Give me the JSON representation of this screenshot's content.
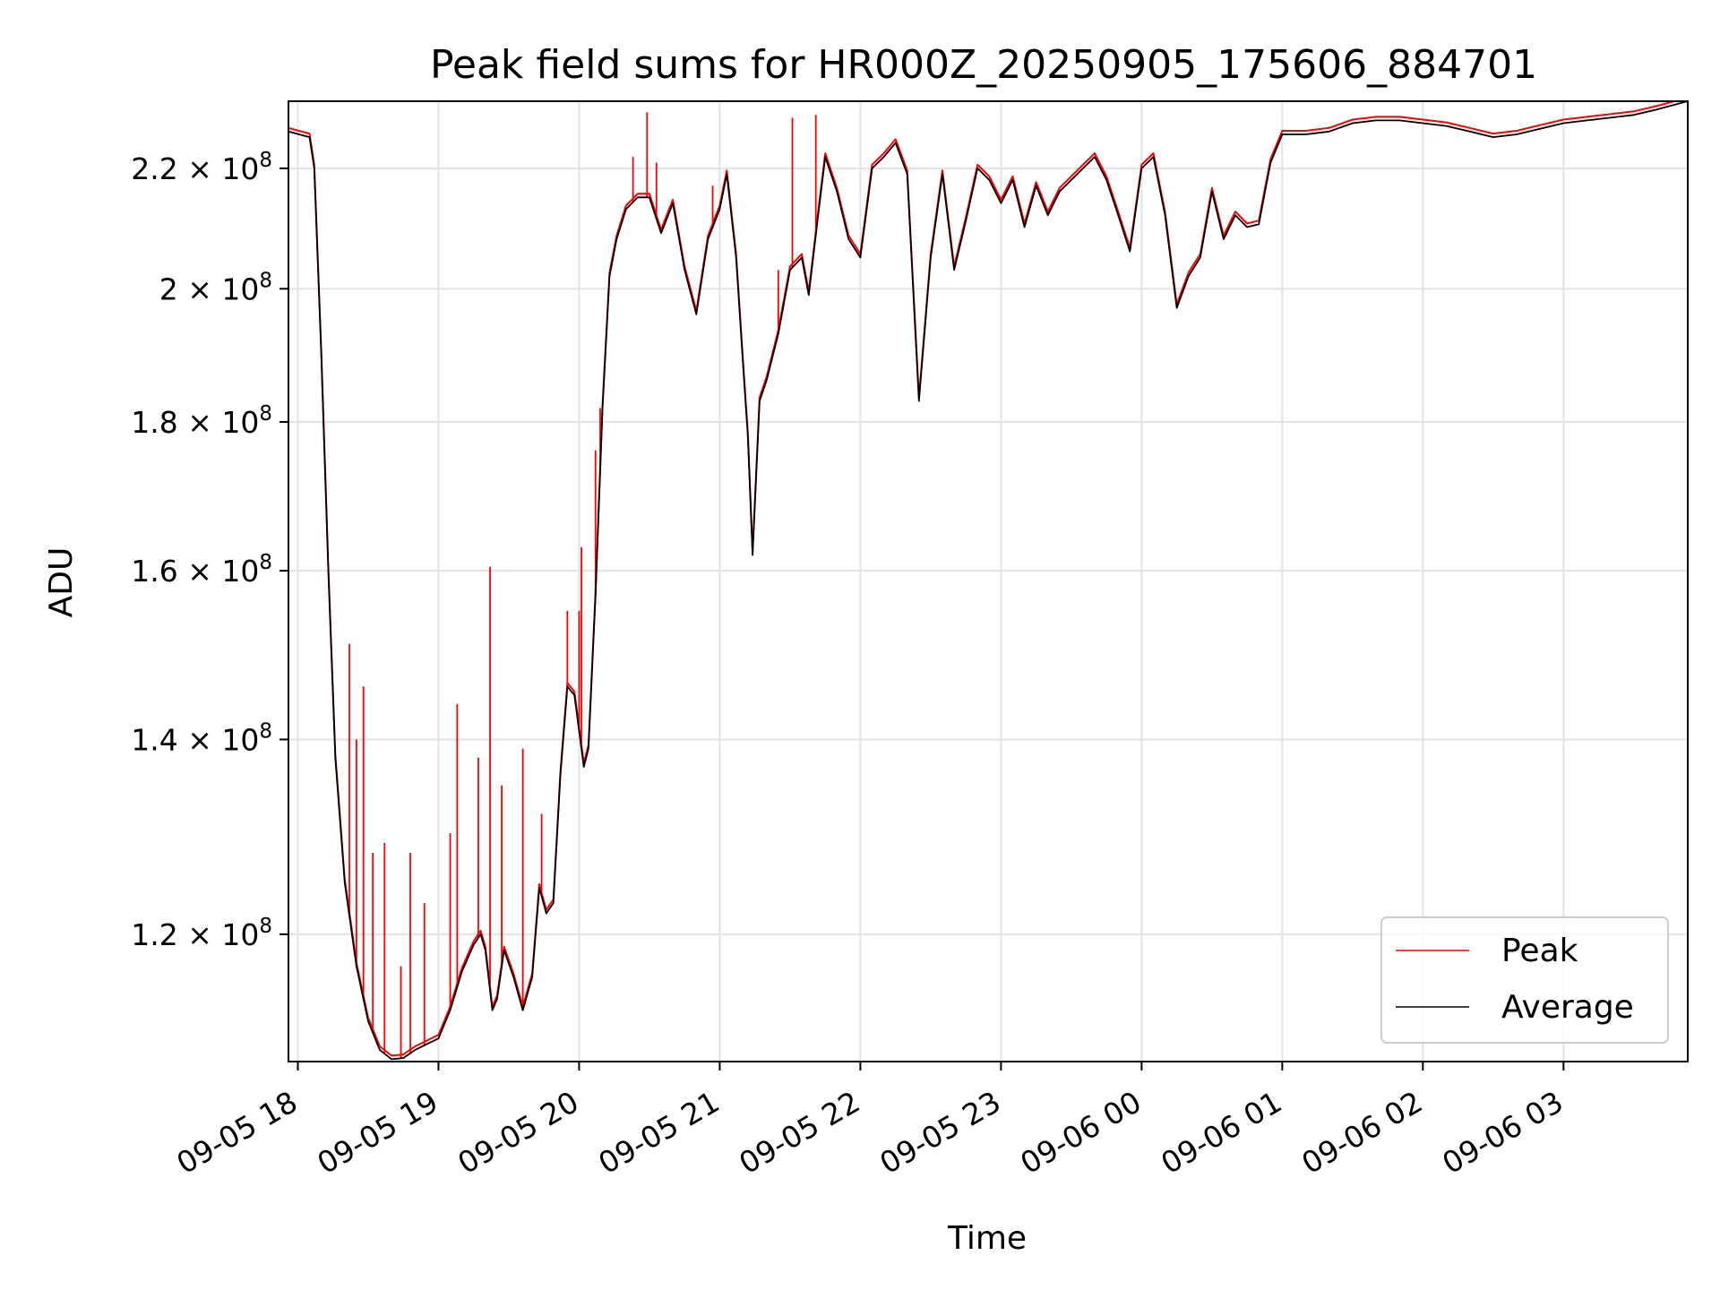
{
  "chart_data": {
    "type": "line",
    "title": "Peak field sums for HR000Z_20250905_175606_884701",
    "xlabel": "Time",
    "ylabel": "ADU",
    "y_scale": "log",
    "ylim": [
      108500000,
      232000000
    ],
    "xlim": [
      "2025-09-05 17:56",
      "2025-09-06 03:53"
    ],
    "grid": true,
    "legend_position": "lower right",
    "x_ticks": [
      {
        "t": "2025-09-05 18:00",
        "label": "09-05 18"
      },
      {
        "t": "2025-09-05 19:00",
        "label": "09-05 19"
      },
      {
        "t": "2025-09-05 20:00",
        "label": "09-05 20"
      },
      {
        "t": "2025-09-05 21:00",
        "label": "09-05 21"
      },
      {
        "t": "2025-09-05 22:00",
        "label": "09-05 22"
      },
      {
        "t": "2025-09-05 23:00",
        "label": "09-05 23"
      },
      {
        "t": "2025-09-06 00:00",
        "label": "09-06 00"
      },
      {
        "t": "2025-09-06 01:00",
        "label": "09-06 01"
      },
      {
        "t": "2025-09-06 02:00",
        "label": "09-06 02"
      },
      {
        "t": "2025-09-06 03:00",
        "label": "09-06 03"
      }
    ],
    "y_ticks": [
      {
        "value": 120000000,
        "mant": "1.2",
        "exp": "8"
      },
      {
        "value": 140000000,
        "mant": "1.4",
        "exp": "8"
      },
      {
        "value": 160000000,
        "mant": "1.6",
        "exp": "8"
      },
      {
        "value": 180000000,
        "mant": "1.8",
        "exp": "8"
      },
      {
        "value": 200000000,
        "mant": "2",
        "exp": "8"
      },
      {
        "value": 220000000,
        "mant": "2.2",
        "exp": "8"
      }
    ],
    "series": [
      {
        "name": "Average",
        "color": "#000000",
        "points": [
          [
            "2025-09-05 17:56",
            226500000
          ],
          [
            "2025-09-05 18:05",
            225500000
          ],
          [
            "2025-09-05 18:07",
            220000000
          ],
          [
            "2025-09-05 18:10",
            190000000
          ],
          [
            "2025-09-05 18:13",
            160000000
          ],
          [
            "2025-09-05 18:16",
            138000000
          ],
          [
            "2025-09-05 18:20",
            125000000
          ],
          [
            "2025-09-05 18:25",
            117000000
          ],
          [
            "2025-09-05 18:30",
            112000000
          ],
          [
            "2025-09-05 18:35",
            109500000
          ],
          [
            "2025-09-05 18:40",
            108700000
          ],
          [
            "2025-09-05 18:45",
            108800000
          ],
          [
            "2025-09-05 18:50",
            109500000
          ],
          [
            "2025-09-05 18:55",
            110000000
          ],
          [
            "2025-09-05 19:00",
            110500000
          ],
          [
            "2025-09-05 19:05",
            113000000
          ],
          [
            "2025-09-05 19:10",
            116500000
          ],
          [
            "2025-09-05 19:15",
            119000000
          ],
          [
            "2025-09-05 19:18",
            120000000
          ],
          [
            "2025-09-05 19:20",
            118500000
          ],
          [
            "2025-09-05 19:23",
            113000000
          ],
          [
            "2025-09-05 19:25",
            114000000
          ],
          [
            "2025-09-05 19:28",
            118500000
          ],
          [
            "2025-09-05 19:32",
            116000000
          ],
          [
            "2025-09-05 19:36",
            113000000
          ],
          [
            "2025-09-05 19:40",
            116000000
          ],
          [
            "2025-09-05 19:43",
            124500000
          ],
          [
            "2025-09-05 19:46",
            122000000
          ],
          [
            "2025-09-05 19:49",
            123000000
          ],
          [
            "2025-09-05 19:52",
            136000000
          ],
          [
            "2025-09-05 19:55",
            146000000
          ],
          [
            "2025-09-05 19:58",
            145000000
          ],
          [
            "2025-09-05 20:02",
            137000000
          ],
          [
            "2025-09-05 20:04",
            139000000
          ],
          [
            "2025-09-05 20:07",
            157000000
          ],
          [
            "2025-09-05 20:10",
            182000000
          ],
          [
            "2025-09-05 20:13",
            202000000
          ],
          [
            "2025-09-05 20:16",
            208000000
          ],
          [
            "2025-09-05 20:20",
            213000000
          ],
          [
            "2025-09-05 20:25",
            215000000
          ],
          [
            "2025-09-05 20:30",
            215000000
          ],
          [
            "2025-09-05 20:35",
            209000000
          ],
          [
            "2025-09-05 20:40",
            214000000
          ],
          [
            "2025-09-05 20:45",
            203000000
          ],
          [
            "2025-09-05 20:50",
            196000000
          ],
          [
            "2025-09-05 20:55",
            208000000
          ],
          [
            "2025-09-05 21:00",
            213000000
          ],
          [
            "2025-09-05 21:03",
            219000000
          ],
          [
            "2025-09-05 21:07",
            205000000
          ],
          [
            "2025-09-05 21:10",
            188000000
          ],
          [
            "2025-09-05 21:12",
            178000000
          ],
          [
            "2025-09-05 21:14",
            162000000
          ],
          [
            "2025-09-05 21:17",
            183000000
          ],
          [
            "2025-09-05 21:20",
            186000000
          ],
          [
            "2025-09-05 21:25",
            193000000
          ],
          [
            "2025-09-05 21:30",
            203000000
          ],
          [
            "2025-09-05 21:35",
            205000000
          ],
          [
            "2025-09-05 21:38",
            199000000
          ],
          [
            "2025-09-05 21:42",
            212000000
          ],
          [
            "2025-09-05 21:45",
            222000000
          ],
          [
            "2025-09-05 21:50",
            216000000
          ],
          [
            "2025-09-05 21:55",
            208000000
          ],
          [
            "2025-09-05 22:00",
            205000000
          ],
          [
            "2025-09-05 22:05",
            220000000
          ],
          [
            "2025-09-05 22:10",
            222000000
          ],
          [
            "2025-09-05 22:15",
            224500000
          ],
          [
            "2025-09-05 22:20",
            219000000
          ],
          [
            "2025-09-05 22:25",
            183000000
          ],
          [
            "2025-09-05 22:30",
            205000000
          ],
          [
            "2025-09-05 22:35",
            219000000
          ],
          [
            "2025-09-05 22:40",
            203000000
          ],
          [
            "2025-09-05 22:45",
            211000000
          ],
          [
            "2025-09-05 22:50",
            220000000
          ],
          [
            "2025-09-05 22:55",
            218000000
          ],
          [
            "2025-09-05 23:00",
            214000000
          ],
          [
            "2025-09-05 23:05",
            218000000
          ],
          [
            "2025-09-05 23:10",
            210000000
          ],
          [
            "2025-09-05 23:15",
            217000000
          ],
          [
            "2025-09-05 23:20",
            212000000
          ],
          [
            "2025-09-05 23:25",
            216000000
          ],
          [
            "2025-09-05 23:30",
            218000000
          ],
          [
            "2025-09-05 23:35",
            220000000
          ],
          [
            "2025-09-05 23:40",
            222000000
          ],
          [
            "2025-09-05 23:45",
            218000000
          ],
          [
            "2025-09-05 23:50",
            212000000
          ],
          [
            "2025-09-05 23:55",
            206000000
          ],
          [
            "2025-09-06 00:00",
            220000000
          ],
          [
            "2025-09-06 00:05",
            222000000
          ],
          [
            "2025-09-06 00:10",
            212000000
          ],
          [
            "2025-09-06 00:15",
            197000000
          ],
          [
            "2025-09-06 00:20",
            202000000
          ],
          [
            "2025-09-06 00:25",
            205000000
          ],
          [
            "2025-09-06 00:30",
            216000000
          ],
          [
            "2025-09-06 00:35",
            208000000
          ],
          [
            "2025-09-06 00:40",
            212000000
          ],
          [
            "2025-09-06 00:45",
            210000000
          ],
          [
            "2025-09-06 00:50",
            210500000
          ],
          [
            "2025-09-06 00:55",
            221000000
          ],
          [
            "2025-09-06 01:00",
            226000000
          ],
          [
            "2025-09-06 01:10",
            226000000
          ],
          [
            "2025-09-06 01:20",
            226500000
          ],
          [
            "2025-09-06 01:30",
            228000000
          ],
          [
            "2025-09-06 01:40",
            228500000
          ],
          [
            "2025-09-06 01:50",
            228500000
          ],
          [
            "2025-09-06 02:00",
            228000000
          ],
          [
            "2025-09-06 02:10",
            227500000
          ],
          [
            "2025-09-06 02:20",
            226500000
          ],
          [
            "2025-09-06 02:30",
            225500000
          ],
          [
            "2025-09-06 02:40",
            226000000
          ],
          [
            "2025-09-06 02:50",
            227000000
          ],
          [
            "2025-09-06 03:00",
            228000000
          ],
          [
            "2025-09-06 03:10",
            228500000
          ],
          [
            "2025-09-06 03:20",
            229000000
          ],
          [
            "2025-09-06 03:30",
            229500000
          ],
          [
            "2025-09-06 03:40",
            230500000
          ],
          [
            "2025-09-06 03:53",
            232000000
          ]
        ]
      },
      {
        "name": "Peak",
        "color": "#ff0000",
        "spikes": [
          [
            "2025-09-05 18:22",
            151000000
          ],
          [
            "2025-09-05 18:25",
            140000000
          ],
          [
            "2025-09-05 18:28",
            146000000
          ],
          [
            "2025-09-05 18:32",
            128000000
          ],
          [
            "2025-09-05 18:37",
            129000000
          ],
          [
            "2025-09-05 18:44",
            117000000
          ],
          [
            "2025-09-05 18:48",
            128000000
          ],
          [
            "2025-09-05 18:54",
            123000000
          ],
          [
            "2025-09-05 19:05",
            130000000
          ],
          [
            "2025-09-05 19:08",
            144000000
          ],
          [
            "2025-09-05 19:17",
            138000000
          ],
          [
            "2025-09-05 19:22",
            160500000
          ],
          [
            "2025-09-05 19:27",
            135000000
          ],
          [
            "2025-09-05 19:36",
            139000000
          ],
          [
            "2025-09-05 19:44",
            132000000
          ],
          [
            "2025-09-05 19:55",
            155000000
          ],
          [
            "2025-09-05 20:00",
            155000000
          ],
          [
            "2025-09-05 20:01",
            163000000
          ],
          [
            "2025-09-05 20:07",
            176000000
          ],
          [
            "2025-09-05 20:09",
            182000000
          ],
          [
            "2025-09-05 20:23",
            222000000
          ],
          [
            "2025-09-05 20:29",
            230000000
          ],
          [
            "2025-09-05 20:33",
            221000000
          ],
          [
            "2025-09-05 20:57",
            217000000
          ],
          [
            "2025-09-05 21:25",
            203000000
          ],
          [
            "2025-09-05 21:31",
            229000000
          ],
          [
            "2025-09-05 21:41",
            229500000
          ]
        ]
      }
    ]
  },
  "legend": [
    {
      "label": "Peak",
      "color": "#ff0000"
    },
    {
      "label": "Average",
      "color": "#000000"
    }
  ]
}
